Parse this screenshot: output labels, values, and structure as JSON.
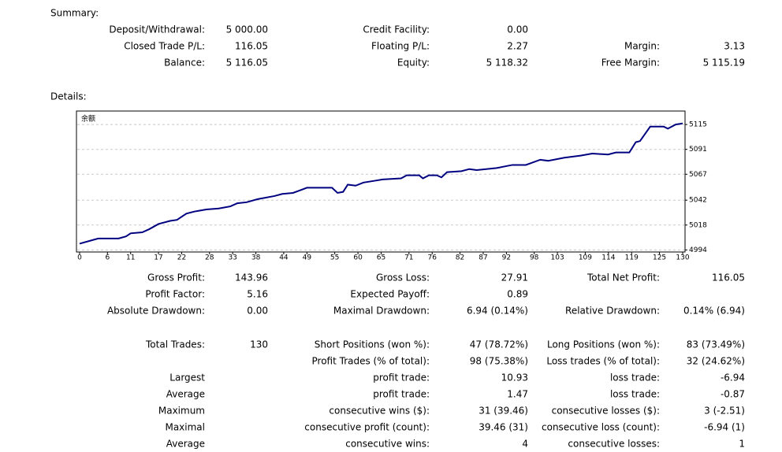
{
  "summary": {
    "title": "Summary:",
    "rows": [
      [
        "Deposit/Withdrawal:",
        "5 000.00",
        "Credit Facility:",
        "0.00",
        null,
        null
      ],
      [
        "Closed Trade P/L:",
        "116.05",
        "Floating P/L:",
        "2.27",
        "Margin:",
        "3.13"
      ],
      [
        "Balance:",
        "5 116.05",
        "Equity:",
        "5 118.32",
        "Free Margin:",
        "5 115.19"
      ]
    ]
  },
  "details": {
    "title": "Details:",
    "rows": [
      [
        "Gross Profit:",
        "143.96",
        "Gross Loss:",
        "27.91",
        "Total Net Profit:",
        "116.05"
      ],
      [
        "Profit Factor:",
        "5.16",
        "Expected Payoff:",
        "0.89",
        null,
        null
      ],
      [
        "Absolute Drawdown:",
        "0.00",
        "Maximal Drawdown:",
        "6.94 (0.14%)",
        "Relative Drawdown:",
        "0.14% (6.94)"
      ],
      [
        "Total Trades:",
        "130",
        "Short Positions (won %):",
        "47 (78.72%)",
        "Long Positions (won %):",
        "83 (73.49%)"
      ],
      [
        null,
        null,
        "Profit Trades (% of total):",
        "98 (75.38%)",
        "Loss trades (% of total):",
        "32 (24.62%)"
      ],
      [
        "Largest",
        null,
        "profit trade:",
        "10.93",
        "loss trade:",
        "-6.94"
      ],
      [
        "Average",
        null,
        "profit trade:",
        "1.47",
        "loss trade:",
        "-0.87"
      ],
      [
        "Maximum",
        null,
        "consecutive wins ($):",
        "31 (39.46)",
        "consecutive losses ($):",
        "3 (-2.51)"
      ],
      [
        "Maximal",
        null,
        "consecutive profit (count):",
        "39.46 (31)",
        "consecutive loss (count):",
        "-6.94 (1)"
      ],
      [
        "Average",
        null,
        "consecutive wins:",
        "4",
        "consecutive losses:",
        "1"
      ]
    ]
  },
  "chart_data": {
    "type": "line",
    "label": "余额",
    "color": "#000080",
    "x": [
      0,
      2.4,
      4,
      8.4,
      10,
      11,
      13.5,
      15,
      17,
      19.5,
      21,
      23,
      24.7,
      27.3,
      30,
      32.5,
      34,
      36,
      38.4,
      42,
      43.7,
      46,
      49,
      54.4,
      55.6,
      56.8,
      57.8,
      59.5,
      61.2,
      64,
      65.3,
      69.3,
      70.5,
      73.2,
      74,
      75.3,
      77,
      78,
      79.2,
      82.3,
      84,
      85.6,
      89.9,
      93.3,
      96.2,
      99.3,
      101,
      104.5,
      108,
      110.5,
      113.9,
      115.6,
      118.5,
      119.9,
      120.8,
      123,
      125.9,
      126.8,
      128.5,
      130
    ],
    "values": [
      5000,
      5003,
      5005,
      5005,
      5007,
      5010,
      5011,
      5014,
      5019,
      5022,
      5023,
      5029,
      5031,
      5033,
      5034,
      5036,
      5039,
      5040,
      5043,
      5046,
      5048,
      5049,
      5054,
      5054,
      5049,
      5050,
      5057,
      5056,
      5059,
      5061,
      5062,
      5063,
      5066,
      5066,
      5063,
      5066,
      5066,
      5064,
      5069,
      5070,
      5072,
      5071,
      5073,
      5076,
      5076,
      5081,
      5080,
      5083,
      5085,
      5087,
      5086,
      5088,
      5088,
      5098,
      5099,
      5113,
      5113,
      5111,
      5115,
      5116
    ],
    "xlim": [
      0,
      130
    ],
    "xticks": [
      0,
      6,
      11,
      17,
      22,
      28,
      33,
      38,
      44,
      49,
      55,
      60,
      65,
      71,
      76,
      82,
      87,
      92,
      98,
      103,
      109,
      114,
      119,
      125,
      130
    ],
    "ylim": [
      4992,
      5128
    ],
    "yticks": [
      4994,
      5018,
      5042,
      5067,
      5091,
      5115
    ],
    "grid": true
  }
}
